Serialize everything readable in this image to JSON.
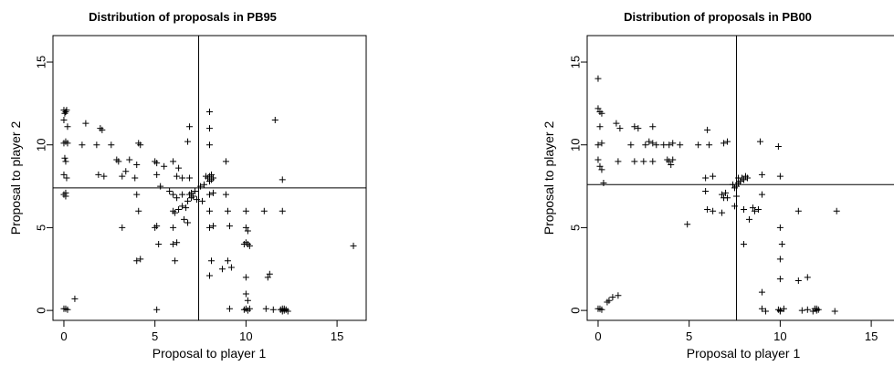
{
  "chart_data": [
    {
      "type": "scatter",
      "title": "Distribution of proposals in PB95",
      "xlabel": "Proposal to player 1",
      "ylabel": "Proposal to player 2",
      "xlim": [
        -0.6,
        16.6
      ],
      "ylim": [
        -0.6,
        16.6
      ],
      "xticks": [
        0,
        5,
        10,
        15
      ],
      "yticks": [
        0,
        5,
        10,
        15
      ],
      "vline": 7.4,
      "hline": 7.4,
      "marker": "+",
      "points": [
        [
          0,
          12.1
        ],
        [
          0.1,
          12
        ],
        [
          0.05,
          11.9
        ],
        [
          0.15,
          12.1
        ],
        [
          0,
          11.5
        ],
        [
          0.2,
          11.1
        ],
        [
          0.1,
          10.2
        ],
        [
          0,
          10.1
        ],
        [
          0.2,
          10.1
        ],
        [
          0.05,
          9.2
        ],
        [
          0.1,
          9
        ],
        [
          0,
          8.2
        ],
        [
          0.15,
          8
        ],
        [
          0.1,
          7.1
        ],
        [
          0,
          7
        ],
        [
          0.1,
          6.9
        ],
        [
          0,
          0.1
        ],
        [
          0.1,
          0.1
        ],
        [
          0.2,
          0.05
        ],
        [
          0.6,
          0.7
        ],
        [
          1.2,
          11.3
        ],
        [
          1,
          10
        ],
        [
          1.8,
          10
        ],
        [
          2,
          11
        ],
        [
          2.1,
          10.9
        ],
        [
          2.6,
          10
        ],
        [
          2.9,
          9.1
        ],
        [
          3,
          9
        ],
        [
          3.6,
          9.1
        ],
        [
          3.4,
          8.4
        ],
        [
          4,
          8.8
        ],
        [
          1.9,
          8.2
        ],
        [
          2.2,
          8.1
        ],
        [
          3.2,
          8.1
        ],
        [
          3.9,
          8
        ],
        [
          4.1,
          10.1
        ],
        [
          4.2,
          10
        ],
        [
          4,
          7
        ],
        [
          4.1,
          6
        ],
        [
          3.2,
          5
        ],
        [
          4,
          3
        ],
        [
          4.2,
          3.1
        ],
        [
          5,
          9
        ],
        [
          5.1,
          8.9
        ],
        [
          5.5,
          8.7
        ],
        [
          6,
          9
        ],
        [
          5.1,
          8.2
        ],
        [
          6.3,
          8.6
        ],
        [
          6.2,
          8.1
        ],
        [
          6.5,
          8
        ],
        [
          5.3,
          7.5
        ],
        [
          5.8,
          7.2
        ],
        [
          6,
          7
        ],
        [
          6.5,
          7
        ],
        [
          6.2,
          6.8
        ],
        [
          6.3,
          6.1
        ],
        [
          6,
          6
        ],
        [
          6.1,
          5.9
        ],
        [
          6.5,
          6.3
        ],
        [
          5.1,
          5.1
        ],
        [
          5,
          5
        ],
        [
          6,
          5
        ],
        [
          6.6,
          5.5
        ],
        [
          5.2,
          4
        ],
        [
          6,
          4
        ],
        [
          6.2,
          4.1
        ],
        [
          6.1,
          3
        ],
        [
          5.1,
          0.05
        ],
        [
          6.9,
          7
        ],
        [
          7,
          7.1
        ],
        [
          7.1,
          6.9
        ],
        [
          7,
          6.8
        ],
        [
          7.2,
          7.2
        ],
        [
          6.8,
          6.6
        ],
        [
          7.3,
          6.7
        ],
        [
          7.5,
          7.5
        ],
        [
          7.6,
          6.6
        ],
        [
          6.9,
          11.1
        ],
        [
          6.8,
          10.2
        ],
        [
          6.9,
          8
        ],
        [
          6.7,
          6.2
        ],
        [
          6.8,
          5.3
        ],
        [
          8,
          12
        ],
        [
          8,
          11
        ],
        [
          8,
          10
        ],
        [
          8,
          8.1
        ],
        [
          8.1,
          7.9
        ],
        [
          7.9,
          8
        ],
        [
          8.2,
          8
        ],
        [
          8,
          7.8
        ],
        [
          8.1,
          8.2
        ],
        [
          7.8,
          8.1
        ],
        [
          7.7,
          7.6
        ],
        [
          8,
          7
        ],
        [
          8.2,
          7.1
        ],
        [
          8.9,
          9
        ],
        [
          8,
          6
        ],
        [
          8,
          5
        ],
        [
          8.2,
          5.1
        ],
        [
          8.9,
          7
        ],
        [
          9,
          6
        ],
        [
          9.1,
          5.1
        ],
        [
          8.1,
          3
        ],
        [
          9,
          3
        ],
        [
          8,
          2.1
        ],
        [
          8.7,
          2.5
        ],
        [
          9.2,
          2.6
        ],
        [
          9.1,
          0.1
        ],
        [
          10,
          6
        ],
        [
          10,
          5
        ],
        [
          10.1,
          4.8
        ],
        [
          10,
          4.1
        ],
        [
          9.9,
          4
        ],
        [
          10.2,
          3.9
        ],
        [
          10.1,
          4
        ],
        [
          10,
          2
        ],
        [
          10,
          1
        ],
        [
          10.1,
          0.6
        ],
        [
          10,
          0.1
        ],
        [
          9.9,
          0.05
        ],
        [
          10.1,
          0
        ],
        [
          10.2,
          0.1
        ],
        [
          11,
          6
        ],
        [
          11.2,
          2
        ],
        [
          11.3,
          2.2
        ],
        [
          11.1,
          0.1
        ],
        [
          11.5,
          0.05
        ],
        [
          11.6,
          11.5
        ],
        [
          12,
          0.1
        ],
        [
          12.1,
          0
        ],
        [
          12,
          -0.05
        ],
        [
          11.9,
          0.05
        ],
        [
          12.2,
          0.05
        ],
        [
          12.3,
          -0.05
        ],
        [
          12.1,
          0.1
        ],
        [
          12,
          7.9
        ],
        [
          12,
          6
        ],
        [
          15.9,
          3.9
        ]
      ]
    },
    {
      "type": "scatter",
      "title": "Distribution of proposals in PB00",
      "xlabel": "Proposal to player 1",
      "ylabel": "Proposal to player 2",
      "xlim": [
        -0.6,
        16.6
      ],
      "ylim": [
        -0.6,
        16.6
      ],
      "xticks": [
        0,
        5,
        10,
        15
      ],
      "yticks": [
        0,
        5,
        10,
        15
      ],
      "vline": 7.6,
      "hline": 7.6,
      "marker": "+",
      "points": [
        [
          0,
          14
        ],
        [
          0,
          12.2
        ],
        [
          0.1,
          12
        ],
        [
          0.2,
          11.9
        ],
        [
          0.1,
          11.1
        ],
        [
          0.2,
          10.1
        ],
        [
          0,
          10
        ],
        [
          0,
          9.1
        ],
        [
          0.1,
          8.7
        ],
        [
          0.2,
          8.5
        ],
        [
          0.3,
          7.7
        ],
        [
          0,
          0.1
        ],
        [
          0.1,
          0.1
        ],
        [
          0.2,
          0.05
        ],
        [
          0.5,
          0.5
        ],
        [
          0.6,
          0.6
        ],
        [
          0.8,
          0.8
        ],
        [
          1.1,
          0.9
        ],
        [
          1,
          11.3
        ],
        [
          1.2,
          11
        ],
        [
          1.1,
          9
        ],
        [
          1.8,
          10
        ],
        [
          2,
          11.1
        ],
        [
          2.2,
          11
        ],
        [
          2,
          9
        ],
        [
          2.5,
          9
        ],
        [
          2.6,
          10
        ],
        [
          2.8,
          10.2
        ],
        [
          3,
          11.1
        ],
        [
          3,
          10.1
        ],
        [
          3.2,
          10
        ],
        [
          3,
          9
        ],
        [
          3.6,
          10
        ],
        [
          3.9,
          10
        ],
        [
          4.1,
          10.1
        ],
        [
          3.9,
          9
        ],
        [
          4,
          8.8
        ],
        [
          4.1,
          9.1
        ],
        [
          3.8,
          9.1
        ],
        [
          4.5,
          10
        ],
        [
          4.9,
          5.2
        ],
        [
          5.5,
          10
        ],
        [
          6,
          10.9
        ],
        [
          6.1,
          10
        ],
        [
          5.9,
          8
        ],
        [
          5.9,
          7.2
        ],
        [
          6.3,
          8.1
        ],
        [
          6,
          6.1
        ],
        [
          6.3,
          6
        ],
        [
          6.8,
          5.9
        ],
        [
          6.9,
          10.1
        ],
        [
          7.1,
          10.2
        ],
        [
          7,
          7.1
        ],
        [
          6.8,
          7
        ],
        [
          6.9,
          6.8
        ],
        [
          7.1,
          6.8
        ],
        [
          7.4,
          7.6
        ],
        [
          7.5,
          7.4
        ],
        [
          7.6,
          7.5
        ],
        [
          7.7,
          7.7
        ],
        [
          7.8,
          7.8
        ],
        [
          7.9,
          8
        ],
        [
          8,
          7.9
        ],
        [
          8.1,
          8.1
        ],
        [
          8.2,
          8
        ],
        [
          7.7,
          8
        ],
        [
          7.6,
          6.9
        ],
        [
          7.5,
          6.3
        ],
        [
          8,
          6.1
        ],
        [
          8,
          4
        ],
        [
          8.3,
          5.5
        ],
        [
          8.6,
          6
        ],
        [
          8.5,
          6.2
        ],
        [
          8.8,
          6.1
        ],
        [
          8.9,
          10.2
        ],
        [
          9,
          8.2
        ],
        [
          9,
          7
        ],
        [
          9,
          1.1
        ],
        [
          9,
          0.1
        ],
        [
          9.2,
          -0.05
        ],
        [
          9.9,
          9.9
        ],
        [
          10,
          8.1
        ],
        [
          10,
          5
        ],
        [
          10.1,
          4
        ],
        [
          10,
          3.1
        ],
        [
          10,
          1.9
        ],
        [
          10,
          0
        ],
        [
          10,
          -0.05
        ],
        [
          9.9,
          0.05
        ],
        [
          10.2,
          0.1
        ],
        [
          11,
          6
        ],
        [
          11,
          1.8
        ],
        [
          11.5,
          2
        ],
        [
          11.2,
          0
        ],
        [
          11.5,
          0.05
        ],
        [
          12,
          0
        ],
        [
          12,
          0.1
        ],
        [
          12.1,
          0.05
        ],
        [
          11.9,
          0.1
        ],
        [
          11.8,
          -0.05
        ],
        [
          13.1,
          6
        ],
        [
          13,
          -0.05
        ]
      ]
    }
  ]
}
